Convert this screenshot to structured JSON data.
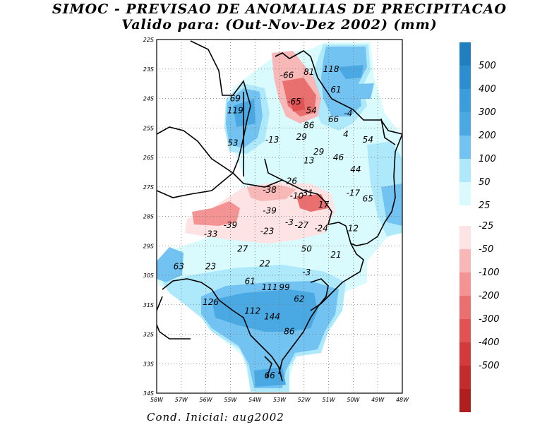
{
  "title_line1": "SIMOC - PREVISAO DE ANOMALIAS DE PRECIPITACAO",
  "title_line2": "Valido para: (Out-Nov-Dez 2002) (mm)",
  "footer": "Cond. Inicial: aug2002",
  "lat_ticks": [
    "22S",
    "23S",
    "24S",
    "25S",
    "26S",
    "27S",
    "28S",
    "29S",
    "30S",
    "31S",
    "32S",
    "33S",
    "34S"
  ],
  "lon_ticks": [
    "58W",
    "57W",
    "56W",
    "55W",
    "54W",
    "53W",
    "52W",
    "51W",
    "50W",
    "49W",
    "48W"
  ],
  "colorbar": {
    "positive": [
      {
        "label": "500",
        "color": "#1f7fbf"
      },
      {
        "label": "400",
        "color": "#2b8fcf"
      },
      {
        "label": "300",
        "color": "#3a9ddc"
      },
      {
        "label": "200",
        "color": "#4aa9e2"
      },
      {
        "label": "100",
        "color": "#72c3f1"
      },
      {
        "label": "50",
        "color": "#aee9fb"
      },
      {
        "label": "25",
        "color": "#d9fbfd"
      }
    ],
    "negative": [
      {
        "label": "-25",
        "color": "#fde3e3"
      },
      {
        "label": "-50",
        "color": "#f8b8b8"
      },
      {
        "label": "-100",
        "color": "#f39393"
      },
      {
        "label": "-200",
        "color": "#ea6f6f"
      },
      {
        "label": "-300",
        "color": "#e25252"
      },
      {
        "label": "-400",
        "color": "#d43a3a"
      },
      {
        "label": "-500",
        "color": "#c42b2b"
      },
      {
        "label": "",
        "color": "#b01e1e"
      }
    ]
  },
  "values": [
    {
      "text": "-66",
      "lon": 52.7,
      "lat": 23.3
    },
    {
      "text": "81",
      "lon": 51.8,
      "lat": 23.2
    },
    {
      "text": "118",
      "lon": 50.9,
      "lat": 23.1
    },
    {
      "text": "61",
      "lon": 50.7,
      "lat": 23.8
    },
    {
      "text": "69",
      "lon": 54.8,
      "lat": 24.1
    },
    {
      "text": "-65",
      "lon": 52.4,
      "lat": 24.2
    },
    {
      "text": "119",
      "lon": 54.8,
      "lat": 24.5
    },
    {
      "text": "54",
      "lon": 51.7,
      "lat": 24.5
    },
    {
      "text": "-4",
      "lon": 50.2,
      "lat": 24.6
    },
    {
      "text": "66",
      "lon": 50.8,
      "lat": 24.8
    },
    {
      "text": "86",
      "lon": 51.8,
      "lat": 25.0
    },
    {
      "text": "4",
      "lon": 50.3,
      "lat": 25.3
    },
    {
      "text": "29",
      "lon": 52.1,
      "lat": 25.4
    },
    {
      "text": "-13",
      "lon": 53.3,
      "lat": 25.5
    },
    {
      "text": "53",
      "lon": 54.9,
      "lat": 25.6
    },
    {
      "text": "54",
      "lon": 49.4,
      "lat": 25.5
    },
    {
      "text": "29",
      "lon": 51.4,
      "lat": 25.9
    },
    {
      "text": "46",
      "lon": 50.6,
      "lat": 26.1
    },
    {
      "text": "13",
      "lon": 51.8,
      "lat": 26.2
    },
    {
      "text": "44",
      "lon": 49.9,
      "lat": 26.5
    },
    {
      "text": "26",
      "lon": 52.5,
      "lat": 26.9
    },
    {
      "text": "-38",
      "lon": 53.4,
      "lat": 27.2
    },
    {
      "text": "-31",
      "lon": 51.9,
      "lat": 27.3
    },
    {
      "text": "-17",
      "lon": 50.0,
      "lat": 27.3
    },
    {
      "text": "-10",
      "lon": 52.3,
      "lat": 27.4
    },
    {
      "text": "65",
      "lon": 49.4,
      "lat": 27.5
    },
    {
      "text": "17",
      "lon": 51.2,
      "lat": 27.7
    },
    {
      "text": "-39",
      "lon": 53.4,
      "lat": 27.9
    },
    {
      "text": "-3",
      "lon": 52.6,
      "lat": 28.3
    },
    {
      "text": "-27",
      "lon": 52.1,
      "lat": 28.4
    },
    {
      "text": "-39",
      "lon": 55.0,
      "lat": 28.4
    },
    {
      "text": "-24",
      "lon": 51.3,
      "lat": 28.5
    },
    {
      "text": "12",
      "lon": 50.0,
      "lat": 28.5
    },
    {
      "text": "-23",
      "lon": 53.5,
      "lat": 28.6
    },
    {
      "text": "-33",
      "lon": 55.8,
      "lat": 28.7
    },
    {
      "text": "50",
      "lon": 51.9,
      "lat": 29.2
    },
    {
      "text": "27",
      "lon": 54.5,
      "lat": 29.2
    },
    {
      "text": "21",
      "lon": 50.7,
      "lat": 29.4
    },
    {
      "text": "22",
      "lon": 53.6,
      "lat": 29.7
    },
    {
      "text": "23",
      "lon": 55.8,
      "lat": 29.8
    },
    {
      "text": "63",
      "lon": 57.1,
      "lat": 29.8
    },
    {
      "text": "-3",
      "lon": 51.9,
      "lat": 30.0
    },
    {
      "text": "61",
      "lon": 54.2,
      "lat": 30.3
    },
    {
      "text": "111",
      "lon": 53.4,
      "lat": 30.5
    },
    {
      "text": "99",
      "lon": 52.8,
      "lat": 30.5
    },
    {
      "text": "62",
      "lon": 52.2,
      "lat": 30.9
    },
    {
      "text": "126",
      "lon": 55.8,
      "lat": 31.0
    },
    {
      "text": "112",
      "lon": 54.1,
      "lat": 31.3
    },
    {
      "text": "144",
      "lon": 53.3,
      "lat": 31.5
    },
    {
      "text": "86",
      "lon": 52.6,
      "lat": 32.0
    },
    {
      "text": "66",
      "lon": 53.4,
      "lat": 33.5
    }
  ]
}
